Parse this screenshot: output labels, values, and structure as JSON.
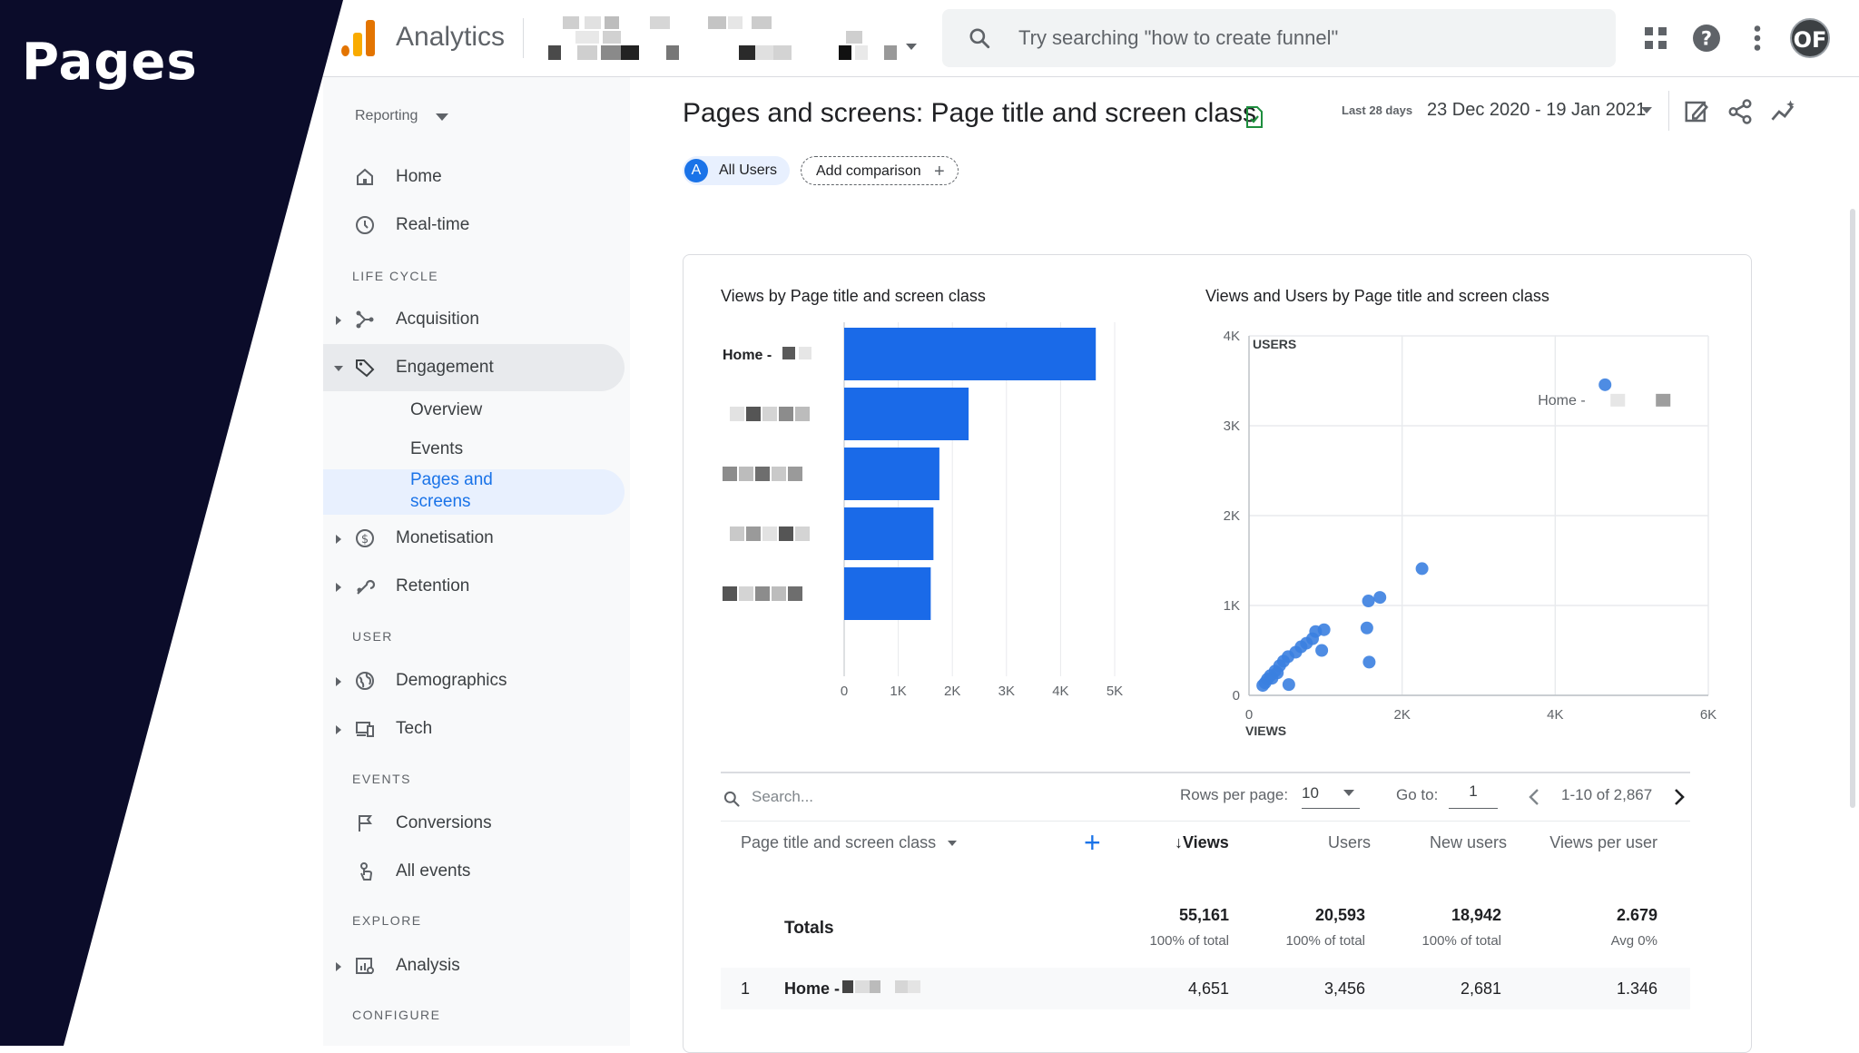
{
  "overlay": {
    "title": "Pages"
  },
  "topbar": {
    "app_name": "Analytics",
    "search_placeholder": "Try searching \"how to create funnel\"",
    "avatar_initials": "OF"
  },
  "sidebar": {
    "reporting_label": "Reporting",
    "home": "Home",
    "realtime": "Real-time",
    "section_lifecycle": "LIFE CYCLE",
    "acquisition": "Acquisition",
    "engagement": "Engagement",
    "overview": "Overview",
    "events": "Events",
    "pages_and_screens": "Pages and screens",
    "monetisation": "Monetisation",
    "retention": "Retention",
    "section_user": "USER",
    "demographics": "Demographics",
    "tech": "Tech",
    "section_events": "EVENTS",
    "conversions": "Conversions",
    "all_events": "All events",
    "section_explore": "EXPLORE",
    "analysis": "Analysis",
    "section_configure": "CONFIGURE"
  },
  "header": {
    "title": "Pages and screens: Page title and screen class",
    "date_prefix": "Last 28 days",
    "date_range": "23 Dec 2020 - 19 Jan 2021",
    "comparison_badge": "A",
    "comparison_all_users": "All Users",
    "add_comparison": "Add comparison"
  },
  "colors": {
    "accent": "#1a73e8",
    "bar": "#1a6ae8",
    "dot": "#3b7fe0"
  },
  "charts": {
    "bar_title": "Views by Page title and screen class",
    "scatter_title": "Views and Users by Page title and screen class"
  },
  "chart_data": [
    {
      "type": "bar",
      "title": "Views by Page title and screen class",
      "categories": [
        "Home - ",
        "",
        "",
        "",
        ""
      ],
      "values": [
        4651,
        2300,
        1760,
        1650,
        1600
      ],
      "xlim": [
        0,
        5000
      ],
      "xticks": [
        "0",
        "1K",
        "2K",
        "3K",
        "4K",
        "5K"
      ]
    },
    {
      "type": "scatter",
      "title": "Views and Users by Page title and screen class",
      "xlabel": "VIEWS",
      "ylabel": "USERS",
      "xlim": [
        0,
        6000
      ],
      "ylim": [
        0,
        4000
      ],
      "xticks": [
        "0",
        "2K",
        "4K",
        "6K"
      ],
      "yticks": [
        "0",
        "1K",
        "2K",
        "3K",
        "4K"
      ],
      "annotation": "Home - ",
      "points": [
        [
          4651,
          3456
        ],
        [
          2260,
          1410
        ],
        [
          1710,
          1090
        ],
        [
          1560,
          1050
        ],
        [
          1540,
          750
        ],
        [
          1570,
          370
        ],
        [
          980,
          730
        ],
        [
          870,
          710
        ],
        [
          830,
          630
        ],
        [
          750,
          580
        ],
        [
          680,
          540
        ],
        [
          610,
          480
        ],
        [
          510,
          430
        ],
        [
          450,
          380
        ],
        [
          400,
          330
        ],
        [
          340,
          270
        ],
        [
          280,
          220
        ],
        [
          240,
          180
        ],
        [
          210,
          140
        ],
        [
          180,
          110
        ],
        [
          300,
          190
        ],
        [
          370,
          250
        ],
        [
          520,
          120
        ],
        [
          950,
          500
        ]
      ]
    }
  ],
  "table": {
    "search_placeholder": "Search...",
    "rows_per_page_label": "Rows per page:",
    "rows_per_page_value": "10",
    "goto_label": "Go to:",
    "goto_value": "1",
    "pager_text": "1-10 of 2,867",
    "columns": {
      "dimension": "Page title and screen class",
      "views": "Views",
      "users": "Users",
      "new_users": "New users",
      "views_per_user": "Views per user"
    },
    "totals": {
      "label": "Totals",
      "views": "55,161",
      "views_sub": "100% of total",
      "users": "20,593",
      "users_sub": "100% of total",
      "new_users": "18,942",
      "new_users_sub": "100% of total",
      "views_per_user": "2.679",
      "views_per_user_sub": "Avg 0%"
    },
    "rows": [
      {
        "index": "1",
        "name": "Home -",
        "views": "4,651",
        "users": "3,456",
        "new_users": "2,681",
        "views_per_user": "1.346"
      }
    ]
  }
}
